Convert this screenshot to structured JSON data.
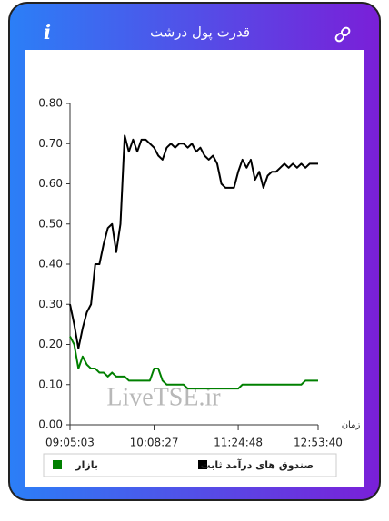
{
  "header": {
    "title": "قدرت پول درشت",
    "info_icon": "i"
  },
  "chart_data": {
    "type": "line",
    "x_label": "زمان",
    "watermark": "LiveTSE.ir",
    "xlim": [
      0,
      59
    ],
    "xticks": [
      {
        "value": 0,
        "label": "09:05:03"
      },
      {
        "value": 20,
        "label": "10:08:27"
      },
      {
        "value": 40,
        "label": "11:24:48"
      },
      {
        "value": 59,
        "label": "12:53:40"
      }
    ],
    "ylim": [
      0,
      0.8
    ],
    "yticks": [
      {
        "value": 0,
        "label": "0.00"
      },
      {
        "value": 0.1,
        "label": "0.10"
      },
      {
        "value": 0.2,
        "label": "0.20"
      },
      {
        "value": 0.3,
        "label": "0.30"
      },
      {
        "value": 0.4,
        "label": "0.40"
      },
      {
        "value": 0.5,
        "label": "0.50"
      },
      {
        "value": 0.6,
        "label": "0.60"
      },
      {
        "value": 0.7,
        "label": "0.70"
      },
      {
        "value": 0.8,
        "label": "0.80"
      }
    ],
    "grid": false,
    "series": [
      {
        "name": "صندوق های درآمد ثابت",
        "color": "#000000",
        "values": [
          0.3,
          0.25,
          0.19,
          0.24,
          0.28,
          0.3,
          0.4,
          0.4,
          0.45,
          0.49,
          0.5,
          0.43,
          0.5,
          0.72,
          0.68,
          0.71,
          0.68,
          0.71,
          0.71,
          0.7,
          0.69,
          0.67,
          0.66,
          0.69,
          0.7,
          0.69,
          0.7,
          0.7,
          0.69,
          0.7,
          0.68,
          0.69,
          0.67,
          0.66,
          0.67,
          0.65,
          0.6,
          0.59,
          0.59,
          0.59,
          0.63,
          0.66,
          0.64,
          0.66,
          0.61,
          0.63,
          0.59,
          0.62,
          0.63,
          0.63,
          0.64,
          0.65,
          0.64,
          0.65,
          0.64,
          0.65,
          0.64,
          0.65,
          0.65,
          0.65
        ]
      },
      {
        "name": "بازار",
        "color": "#008000",
        "values": [
          0.22,
          0.2,
          0.14,
          0.17,
          0.15,
          0.14,
          0.14,
          0.13,
          0.13,
          0.12,
          0.13,
          0.12,
          0.12,
          0.12,
          0.11,
          0.11,
          0.11,
          0.11,
          0.11,
          0.11,
          0.14,
          0.14,
          0.11,
          0.1,
          0.1,
          0.1,
          0.1,
          0.1,
          0.09,
          0.09,
          0.09,
          0.09,
          0.09,
          0.09,
          0.09,
          0.09,
          0.09,
          0.09,
          0.09,
          0.09,
          0.09,
          0.1,
          0.1,
          0.1,
          0.1,
          0.1,
          0.1,
          0.1,
          0.1,
          0.1,
          0.1,
          0.1,
          0.1,
          0.1,
          0.1,
          0.1,
          0.11,
          0.11,
          0.11,
          0.11
        ]
      }
    ]
  }
}
